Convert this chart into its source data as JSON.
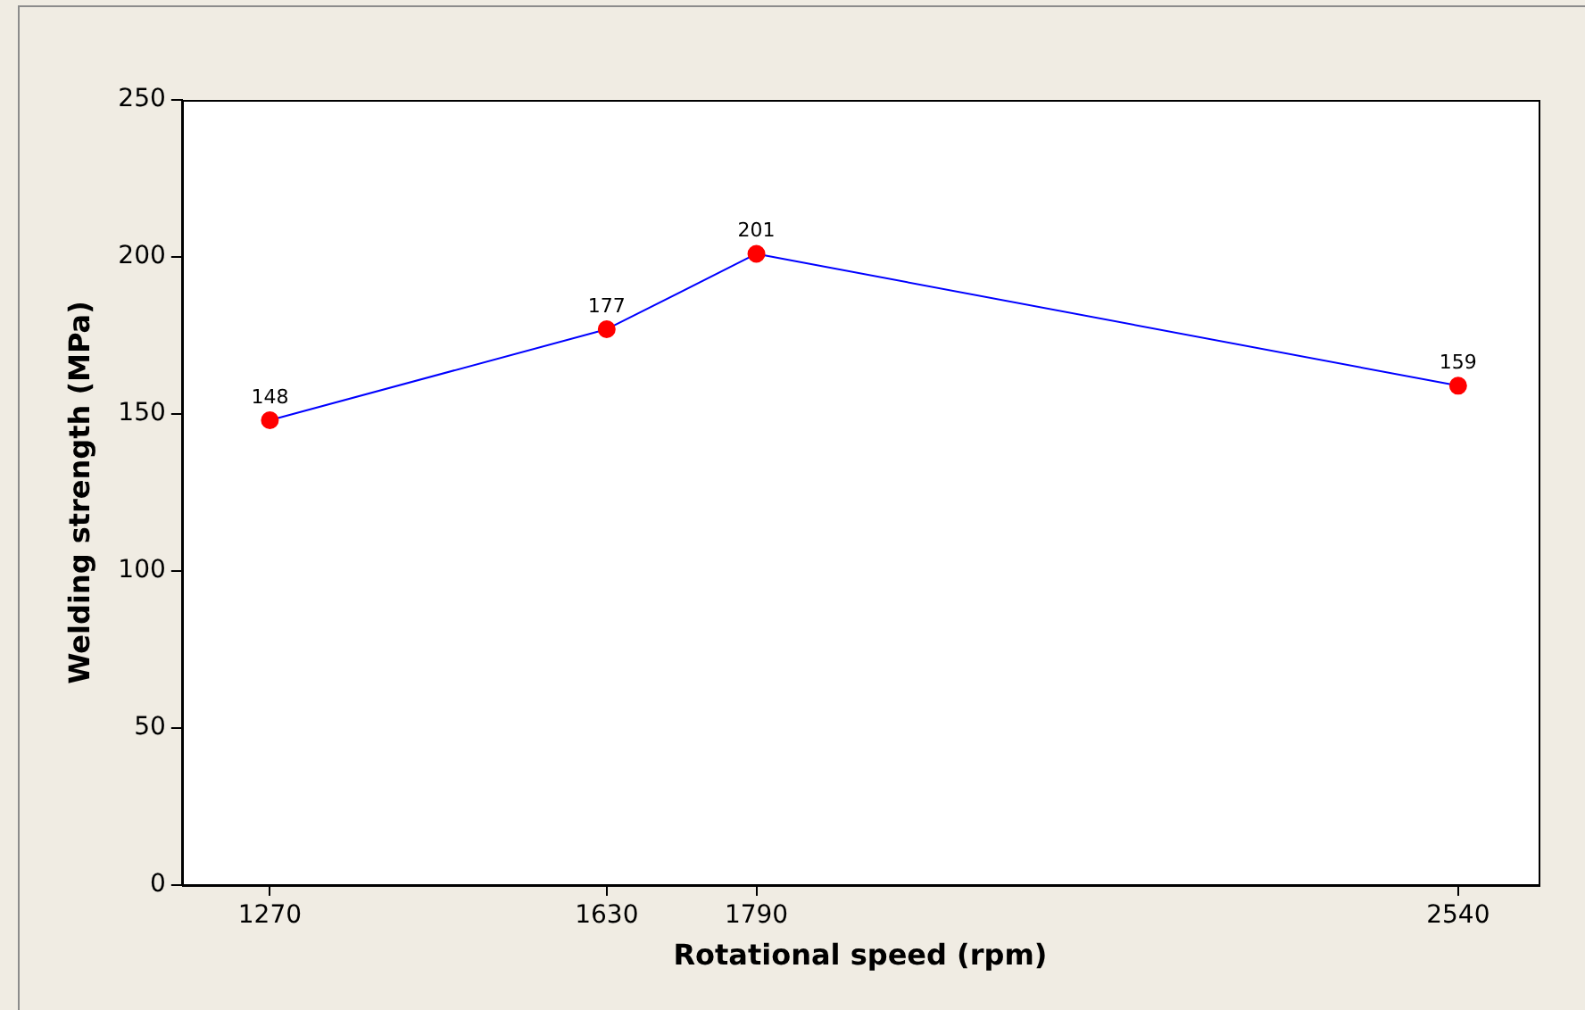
{
  "chart_data": {
    "type": "line",
    "xlabel": "Rotational speed (rpm)",
    "ylabel": "Welding strength (MPa)",
    "x": [
      1270,
      1630,
      1790,
      2540
    ],
    "series": [
      {
        "color": "#0000ff",
        "colors": [
          "#ff0000",
          "#ff0000",
          "#ff0000",
          "#ff0000"
        ],
        "values": [
          148,
          177,
          201,
          159
        ]
      }
    ],
    "xlim": [
      1176,
      2626
    ],
    "xticks": [
      1270,
      1630,
      1790,
      2540
    ],
    "ylim": [
      0,
      250
    ],
    "yticks": [
      0,
      50,
      100,
      150,
      200,
      250
    ],
    "grid": false,
    "legend": false,
    "marker": "circle",
    "line_style": "solid",
    "data_labels": true
  }
}
